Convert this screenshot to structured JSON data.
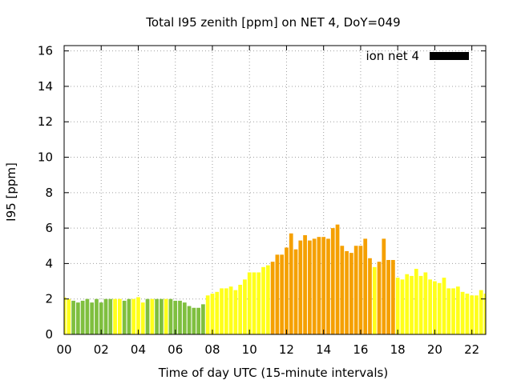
{
  "chart_data": {
    "type": "bar",
    "title": "Total I95 zenith [ppm] on NET 4, DoY=049",
    "xlabel": "Time of day UTC (15-minute intervals)",
    "ylabel": "I95 [ppm]",
    "xlim": [
      0,
      22.75
    ],
    "ylim": [
      0,
      16.3
    ],
    "xticks": [
      {
        "value": 0,
        "label": "00"
      },
      {
        "value": 2,
        "label": "02"
      },
      {
        "value": 4,
        "label": "04"
      },
      {
        "value": 6,
        "label": "06"
      },
      {
        "value": 8,
        "label": "08"
      },
      {
        "value": 10,
        "label": "10"
      },
      {
        "value": 12,
        "label": "12"
      },
      {
        "value": 14,
        "label": "14"
      },
      {
        "value": 16,
        "label": "16"
      },
      {
        "value": 18,
        "label": "18"
      },
      {
        "value": 20,
        "label": "20"
      },
      {
        "value": 22,
        "label": "22"
      }
    ],
    "yticks": [
      {
        "value": 0,
        "label": "0"
      },
      {
        "value": 2,
        "label": "2"
      },
      {
        "value": 4,
        "label": "4"
      },
      {
        "value": 6,
        "label": "6"
      },
      {
        "value": 8,
        "label": "8"
      },
      {
        "value": 10,
        "label": "10"
      },
      {
        "value": 12,
        "label": "12"
      },
      {
        "value": 14,
        "label": "14"
      },
      {
        "value": 16,
        "label": "16"
      }
    ],
    "grid": true,
    "legend": {
      "position": "top-right",
      "label": "ion net 4",
      "color": "#000000"
    },
    "colors": {
      "green": "#7fbf3f",
      "yellow": "#ffff1a",
      "orange": "#f5a000"
    },
    "series": [
      {
        "name": "ion net 4",
        "interval_hours": 0.25,
        "points": [
          {
            "x": 0.0,
            "y": 2.1,
            "c": "yellow"
          },
          {
            "x": 0.25,
            "y": 2.0,
            "c": "yellow"
          },
          {
            "x": 0.5,
            "y": 1.9,
            "c": "green"
          },
          {
            "x": 0.75,
            "y": 1.8,
            "c": "green"
          },
          {
            "x": 1.0,
            "y": 1.9,
            "c": "green"
          },
          {
            "x": 1.25,
            "y": 2.0,
            "c": "green"
          },
          {
            "x": 1.5,
            "y": 1.8,
            "c": "green"
          },
          {
            "x": 1.75,
            "y": 2.0,
            "c": "green"
          },
          {
            "x": 2.0,
            "y": 1.8,
            "c": "green"
          },
          {
            "x": 2.25,
            "y": 2.0,
            "c": "green"
          },
          {
            "x": 2.5,
            "y": 2.0,
            "c": "green"
          },
          {
            "x": 2.75,
            "y": 2.0,
            "c": "yellow"
          },
          {
            "x": 3.0,
            "y": 2.0,
            "c": "yellow"
          },
          {
            "x": 3.25,
            "y": 1.9,
            "c": "green"
          },
          {
            "x": 3.5,
            "y": 2.0,
            "c": "green"
          },
          {
            "x": 3.75,
            "y": 2.0,
            "c": "yellow"
          },
          {
            "x": 4.0,
            "y": 2.1,
            "c": "yellow"
          },
          {
            "x": 4.25,
            "y": 1.8,
            "c": "yellow"
          },
          {
            "x": 4.5,
            "y": 2.0,
            "c": "green"
          },
          {
            "x": 4.75,
            "y": 2.0,
            "c": "yellow"
          },
          {
            "x": 5.0,
            "y": 2.0,
            "c": "green"
          },
          {
            "x": 5.25,
            "y": 2.0,
            "c": "green"
          },
          {
            "x": 5.5,
            "y": 2.0,
            "c": "yellow"
          },
          {
            "x": 5.75,
            "y": 2.0,
            "c": "green"
          },
          {
            "x": 6.0,
            "y": 1.9,
            "c": "green"
          },
          {
            "x": 6.25,
            "y": 1.9,
            "c": "green"
          },
          {
            "x": 6.5,
            "y": 1.8,
            "c": "green"
          },
          {
            "x": 6.75,
            "y": 1.6,
            "c": "green"
          },
          {
            "x": 7.0,
            "y": 1.5,
            "c": "green"
          },
          {
            "x": 7.25,
            "y": 1.5,
            "c": "green"
          },
          {
            "x": 7.5,
            "y": 1.7,
            "c": "green"
          },
          {
            "x": 7.75,
            "y": 2.2,
            "c": "yellow"
          },
          {
            "x": 8.0,
            "y": 2.3,
            "c": "yellow"
          },
          {
            "x": 8.25,
            "y": 2.4,
            "c": "yellow"
          },
          {
            "x": 8.5,
            "y": 2.6,
            "c": "yellow"
          },
          {
            "x": 8.75,
            "y": 2.6,
            "c": "yellow"
          },
          {
            "x": 9.0,
            "y": 2.7,
            "c": "yellow"
          },
          {
            "x": 9.25,
            "y": 2.5,
            "c": "yellow"
          },
          {
            "x": 9.5,
            "y": 2.8,
            "c": "yellow"
          },
          {
            "x": 9.75,
            "y": 3.1,
            "c": "yellow"
          },
          {
            "x": 10.0,
            "y": 3.5,
            "c": "yellow"
          },
          {
            "x": 10.25,
            "y": 3.5,
            "c": "yellow"
          },
          {
            "x": 10.5,
            "y": 3.5,
            "c": "yellow"
          },
          {
            "x": 10.75,
            "y": 3.8,
            "c": "yellow"
          },
          {
            "x": 11.0,
            "y": 3.9,
            "c": "yellow"
          },
          {
            "x": 11.25,
            "y": 4.1,
            "c": "orange"
          },
          {
            "x": 11.5,
            "y": 4.5,
            "c": "orange"
          },
          {
            "x": 11.75,
            "y": 4.5,
            "c": "orange"
          },
          {
            "x": 12.0,
            "y": 4.9,
            "c": "orange"
          },
          {
            "x": 12.25,
            "y": 5.7,
            "c": "orange"
          },
          {
            "x": 12.5,
            "y": 4.8,
            "c": "orange"
          },
          {
            "x": 12.75,
            "y": 5.3,
            "c": "orange"
          },
          {
            "x": 13.0,
            "y": 5.6,
            "c": "orange"
          },
          {
            "x": 13.25,
            "y": 5.3,
            "c": "orange"
          },
          {
            "x": 13.5,
            "y": 5.4,
            "c": "orange"
          },
          {
            "x": 13.75,
            "y": 5.5,
            "c": "orange"
          },
          {
            "x": 14.0,
            "y": 5.5,
            "c": "orange"
          },
          {
            "x": 14.25,
            "y": 5.4,
            "c": "orange"
          },
          {
            "x": 14.5,
            "y": 6.0,
            "c": "orange"
          },
          {
            "x": 14.75,
            "y": 6.2,
            "c": "orange"
          },
          {
            "x": 15.0,
            "y": 5.0,
            "c": "orange"
          },
          {
            "x": 15.25,
            "y": 4.7,
            "c": "orange"
          },
          {
            "x": 15.5,
            "y": 4.6,
            "c": "orange"
          },
          {
            "x": 15.75,
            "y": 5.0,
            "c": "orange"
          },
          {
            "x": 16.0,
            "y": 5.0,
            "c": "orange"
          },
          {
            "x": 16.25,
            "y": 5.4,
            "c": "orange"
          },
          {
            "x": 16.5,
            "y": 4.3,
            "c": "orange"
          },
          {
            "x": 16.75,
            "y": 3.8,
            "c": "yellow"
          },
          {
            "x": 17.0,
            "y": 4.1,
            "c": "orange"
          },
          {
            "x": 17.25,
            "y": 5.4,
            "c": "orange"
          },
          {
            "x": 17.5,
            "y": 4.2,
            "c": "orange"
          },
          {
            "x": 17.75,
            "y": 4.2,
            "c": "orange"
          },
          {
            "x": 18.0,
            "y": 3.2,
            "c": "yellow"
          },
          {
            "x": 18.25,
            "y": 3.1,
            "c": "yellow"
          },
          {
            "x": 18.5,
            "y": 3.4,
            "c": "yellow"
          },
          {
            "x": 18.75,
            "y": 3.3,
            "c": "yellow"
          },
          {
            "x": 19.0,
            "y": 3.7,
            "c": "yellow"
          },
          {
            "x": 19.25,
            "y": 3.3,
            "c": "yellow"
          },
          {
            "x": 19.5,
            "y": 3.5,
            "c": "yellow"
          },
          {
            "x": 19.75,
            "y": 3.1,
            "c": "yellow"
          },
          {
            "x": 20.0,
            "y": 3.0,
            "c": "yellow"
          },
          {
            "x": 20.25,
            "y": 2.9,
            "c": "yellow"
          },
          {
            "x": 20.5,
            "y": 3.2,
            "c": "yellow"
          },
          {
            "x": 20.75,
            "y": 2.6,
            "c": "yellow"
          },
          {
            "x": 21.0,
            "y": 2.6,
            "c": "yellow"
          },
          {
            "x": 21.25,
            "y": 2.7,
            "c": "yellow"
          },
          {
            "x": 21.5,
            "y": 2.4,
            "c": "yellow"
          },
          {
            "x": 21.75,
            "y": 2.3,
            "c": "yellow"
          },
          {
            "x": 22.0,
            "y": 2.2,
            "c": "yellow"
          },
          {
            "x": 22.25,
            "y": 2.2,
            "c": "yellow"
          },
          {
            "x": 22.5,
            "y": 2.5,
            "c": "yellow"
          },
          {
            "x": 22.75,
            "y": 2.3,
            "c": "yellow"
          }
        ]
      }
    ]
  }
}
